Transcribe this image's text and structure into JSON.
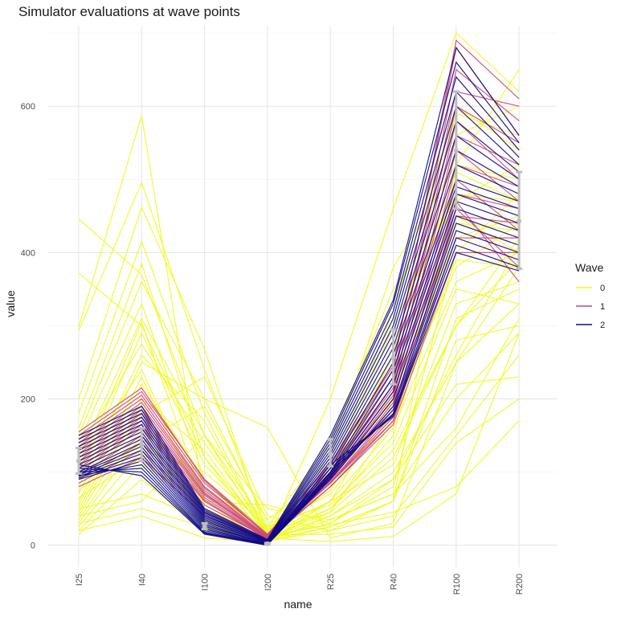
{
  "chart_data": {
    "type": "line",
    "title": "Simulator evaluations at wave points",
    "xlabel": "name",
    "ylabel": "value",
    "categories": [
      "I25",
      "I40",
      "I100",
      "I200",
      "R25",
      "R40",
      "R100",
      "R200"
    ],
    "ylim": [
      -30,
      710
    ],
    "yticks": [
      0,
      200,
      400,
      600
    ],
    "grid": true,
    "legend": {
      "title": "Wave",
      "position": "right",
      "entries": [
        {
          "label": "0",
          "color": "#f0f921"
        },
        {
          "label": "1",
          "color": "#cc4778"
        },
        {
          "label": "2",
          "color": "#0d0887"
        }
      ]
    },
    "series": [
      {
        "name": "0",
        "color": "#f0f921",
        "values": [
          [
            446,
            370,
            150,
            12,
            30,
            80,
            400,
            480
          ],
          [
            372,
            300,
            120,
            18,
            45,
            120,
            300,
            420
          ],
          [
            298,
            587,
            60,
            8,
            25,
            60,
            520,
            650
          ],
          [
            293,
            496,
            240,
            20,
            60,
            200,
            560,
            600
          ],
          [
            200,
            462,
            268,
            10,
            80,
            260,
            590,
            560
          ],
          [
            180,
            415,
            180,
            15,
            50,
            150,
            450,
            400
          ],
          [
            160,
            385,
            120,
            6,
            20,
            60,
            280,
            300
          ],
          [
            150,
            360,
            200,
            161,
            10,
            30,
            250,
            380
          ],
          [
            140,
            330,
            90,
            12,
            100,
            320,
            600,
            540
          ],
          [
            120,
            310,
            150,
            25,
            70,
            180,
            380,
            440
          ],
          [
            100,
            305,
            60,
            10,
            40,
            90,
            220,
            230
          ],
          [
            90,
            290,
            110,
            22,
            90,
            300,
            480,
            470
          ],
          [
            80,
            260,
            170,
            14,
            15,
            25,
            140,
            200
          ],
          [
            70,
            250,
            200,
            30,
            55,
            140,
            350,
            330
          ],
          [
            60,
            230,
            50,
            8,
            35,
            70,
            200,
            290
          ],
          [
            55,
            220,
            90,
            18,
            120,
            380,
            520,
            500
          ],
          [
            50,
            200,
            130,
            12,
            28,
            45,
            80,
            170
          ],
          [
            45,
            190,
            30,
            5,
            60,
            110,
            330,
            360
          ],
          [
            40,
            180,
            230,
            40,
            20,
            40,
            150,
            260
          ],
          [
            35,
            160,
            80,
            15,
            75,
            210,
            420,
            450
          ],
          [
            30,
            150,
            45,
            10,
            5,
            12,
            70,
            290
          ],
          [
            25,
            130,
            100,
            25,
            140,
            350,
            470,
            520
          ],
          [
            20,
            110,
            60,
            55,
            30,
            90,
            260,
            410
          ],
          [
            15,
            90,
            20,
            10,
            45,
            170,
            390,
            380
          ],
          [
            50,
            70,
            35,
            5,
            25,
            60,
            310,
            350
          ],
          [
            40,
            60,
            150,
            50,
            35,
            70,
            160,
            310
          ],
          [
            30,
            50,
            25,
            8,
            50,
            130,
            300,
            390
          ],
          [
            20,
            40,
            10,
            4,
            40,
            100,
            250,
            330
          ],
          [
            75,
            140,
            190,
            35,
            100,
            230,
            440,
            430
          ],
          [
            65,
            120,
            70,
            12,
            60,
            160,
            360,
            400
          ],
          [
            130,
            275,
            140,
            20,
            90,
            260,
            510,
            470
          ],
          [
            110,
            240,
            55,
            6,
            200,
            460,
            700,
            620
          ]
        ]
      },
      {
        "name": "1",
        "color": "#cc4778",
        "values": [
          [
            150,
            210,
            90,
            15,
            110,
            240,
            690,
            610
          ],
          [
            140,
            200,
            80,
            12,
            100,
            220,
            650,
            580
          ],
          [
            130,
            190,
            75,
            10,
            95,
            210,
            600,
            550
          ],
          [
            120,
            180,
            70,
            12,
            90,
            200,
            560,
            520
          ],
          [
            110,
            170,
            65,
            10,
            90,
            190,
            520,
            490
          ],
          [
            100,
            160,
            60,
            8,
            85,
            180,
            480,
            460
          ],
          [
            95,
            150,
            55,
            10,
            85,
            175,
            450,
            440
          ],
          [
            90,
            140,
            50,
            8,
            80,
            170,
            420,
            420
          ],
          [
            85,
            130,
            45,
            6,
            80,
            165,
            400,
            400
          ],
          [
            80,
            120,
            40,
            7,
            85,
            170,
            460,
            380
          ],
          [
            145,
            205,
            85,
            14,
            105,
            230,
            620,
            600
          ],
          [
            135,
            195,
            78,
            11,
            98,
            215,
            580,
            500
          ],
          [
            125,
            185,
            72,
            9,
            92,
            205,
            540,
            470
          ],
          [
            115,
            175,
            68,
            11,
            88,
            195,
            500,
            430
          ],
          [
            105,
            165,
            62,
            9,
            86,
            185,
            470,
            360
          ],
          [
            155,
            215,
            88,
            13,
            112,
            245,
            680,
            560
          ]
        ]
      },
      {
        "name": "2",
        "color": "#0d0887",
        "values": [
          [
            150,
            190,
            50,
            8,
            150,
            335,
            680,
            560
          ],
          [
            145,
            185,
            48,
            7,
            145,
            330,
            660,
            550
          ],
          [
            140,
            180,
            46,
            6,
            140,
            320,
            640,
            540
          ],
          [
            135,
            175,
            44,
            6,
            135,
            310,
            620,
            530
          ],
          [
            130,
            170,
            42,
            5,
            130,
            300,
            600,
            520
          ],
          [
            125,
            165,
            40,
            5,
            125,
            290,
            580,
            510
          ],
          [
            120,
            160,
            38,
            4,
            120,
            280,
            560,
            500
          ],
          [
            115,
            155,
            36,
            4,
            115,
            270,
            540,
            490
          ],
          [
            110,
            150,
            34,
            3,
            110,
            260,
            520,
            480
          ],
          [
            105,
            145,
            32,
            3,
            105,
            250,
            500,
            470
          ],
          [
            100,
            140,
            30,
            2,
            100,
            240,
            490,
            460
          ],
          [
            98,
            135,
            28,
            2,
            98,
            230,
            480,
            450
          ],
          [
            96,
            130,
            26,
            2,
            96,
            220,
            470,
            440
          ],
          [
            94,
            125,
            24,
            1,
            94,
            210,
            460,
            430
          ],
          [
            92,
            120,
            22,
            1,
            92,
            200,
            450,
            420
          ],
          [
            90,
            115,
            20,
            1,
            90,
            190,
            440,
            410
          ],
          [
            95,
            110,
            18,
            1,
            95,
            185,
            430,
            400
          ],
          [
            100,
            105,
            17,
            1,
            100,
            180,
            420,
            390
          ],
          [
            105,
            100,
            16,
            0,
            105,
            178,
            410,
            380
          ],
          [
            110,
            95,
            15,
            0,
            110,
            176,
            400,
            375
          ]
        ]
      }
    ],
    "errorbars": {
      "color": "#bdbdbd",
      "points": [
        {
          "category": "I25",
          "mid": 115,
          "low": 98,
          "high": 133
        },
        {
          "category": "I40",
          "mid": 137,
          "low": 115,
          "high": 160
        },
        {
          "category": "I100",
          "mid": 26,
          "low": 22,
          "high": 30
        },
        {
          "category": "I200",
          "mid": 2,
          "low": 1,
          "high": 3
        },
        {
          "category": "R25",
          "mid": 125,
          "low": 108,
          "high": 145
        },
        {
          "category": "R40",
          "mid": 257,
          "low": 220,
          "high": 295
        },
        {
          "category": "R100",
          "mid": 539,
          "low": 460,
          "high": 620
        },
        {
          "category": "R200",
          "mid": 443,
          "low": 378,
          "high": 510
        }
      ]
    }
  }
}
